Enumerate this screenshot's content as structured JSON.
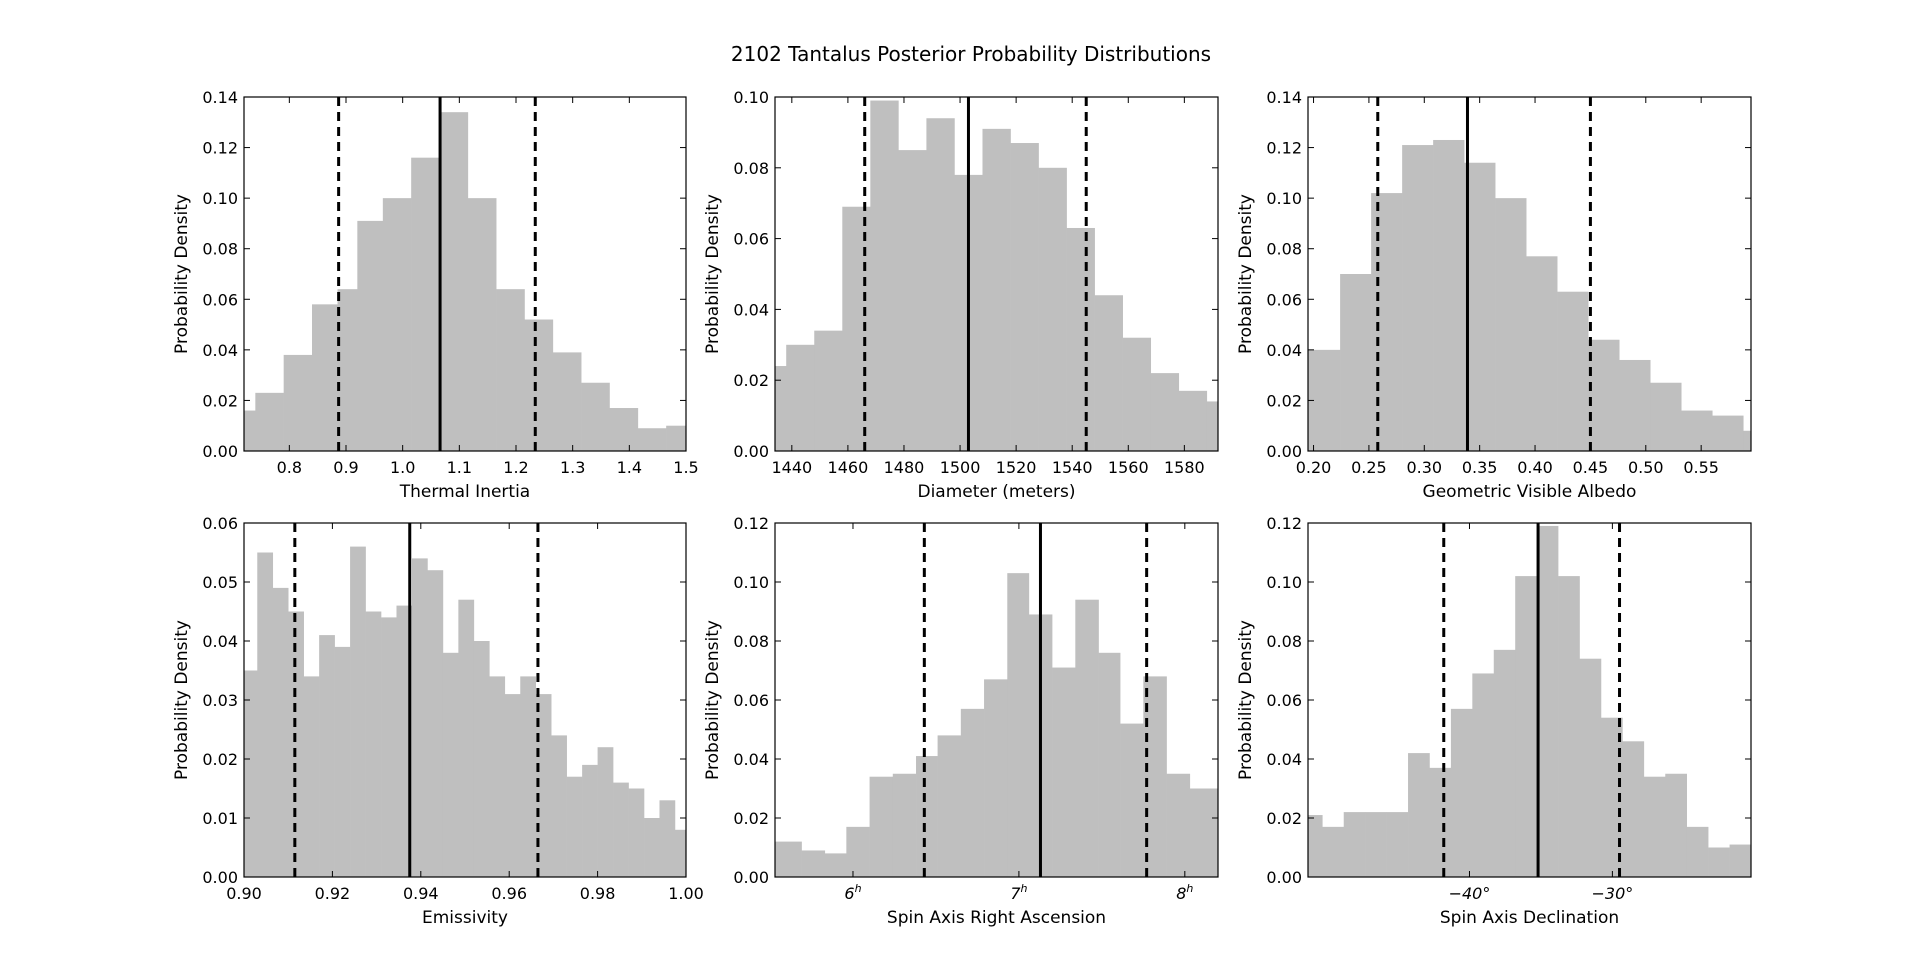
{
  "suptitle": "2102 Tantalus Posterior Probability Distributions",
  "chart_data": [
    {
      "type": "bar",
      "xlabel": "Thermal Inertia",
      "ylabel": "Probability Density",
      "xlim": [
        0.72,
        1.5
      ],
      "ylim": [
        0,
        0.14
      ],
      "xticks": [
        {
          "value": 0.8,
          "label": "0.8"
        },
        {
          "value": 0.9,
          "label": "0.9"
        },
        {
          "value": 1.0,
          "label": "1.0"
        },
        {
          "value": 1.1,
          "label": "1.1"
        },
        {
          "value": 1.2,
          "label": "1.2"
        },
        {
          "value": 1.3,
          "label": "1.3"
        },
        {
          "value": 1.4,
          "label": "1.4"
        },
        {
          "value": 1.5,
          "label": "1.5"
        }
      ],
      "yticks": [
        {
          "value": 0,
          "label": "0.00"
        },
        {
          "value": 0.02,
          "label": "0.02"
        },
        {
          "value": 0.04,
          "label": "0.04"
        },
        {
          "value": 0.06,
          "label": "0.06"
        },
        {
          "value": 0.08,
          "label": "0.08"
        },
        {
          "value": 0.1,
          "label": "0.10"
        },
        {
          "value": 0.12,
          "label": "0.12"
        },
        {
          "value": 0.14,
          "label": "0.14"
        }
      ],
      "bin_edges": [
        0.72,
        0.74,
        0.79,
        0.84,
        0.885,
        0.92,
        0.965,
        1.015,
        1.065,
        1.115,
        1.165,
        1.215,
        1.265,
        1.315,
        1.365,
        1.415,
        1.465,
        1.5
      ],
      "values": [
        0.016,
        0.023,
        0.038,
        0.058,
        0.064,
        0.091,
        0.1,
        0.116,
        0.134,
        0.1,
        0.064,
        0.052,
        0.039,
        0.027,
        0.017,
        0.009,
        0.01
      ],
      "median": 1.066,
      "interval": [
        0.887,
        1.234
      ],
      "grid": false
    },
    {
      "type": "bar",
      "xlabel": "Diameter (meters)",
      "ylabel": "Probability Density",
      "xlim": [
        1434,
        1592
      ],
      "ylim": [
        0,
        0.1
      ],
      "xticks": [
        {
          "value": 1440,
          "label": "1440"
        },
        {
          "value": 1460,
          "label": "1460"
        },
        {
          "value": 1480,
          "label": "1480"
        },
        {
          "value": 1500,
          "label": "1500"
        },
        {
          "value": 1520,
          "label": "1520"
        },
        {
          "value": 1540,
          "label": "1540"
        },
        {
          "value": 1560,
          "label": "1560"
        },
        {
          "value": 1580,
          "label": "1580"
        }
      ],
      "yticks": [
        {
          "value": 0,
          "label": "0.00"
        },
        {
          "value": 0.02,
          "label": "0.02"
        },
        {
          "value": 0.04,
          "label": "0.04"
        },
        {
          "value": 0.06,
          "label": "0.06"
        },
        {
          "value": 0.08,
          "label": "0.08"
        },
        {
          "value": 0.1,
          "label": "0.10"
        }
      ],
      "bin_edges": [
        1434,
        1438,
        1448,
        1458,
        1468,
        1478,
        1488,
        1498,
        1508,
        1518,
        1528,
        1538,
        1548,
        1558,
        1568,
        1578,
        1588,
        1592
      ],
      "values": [
        0.024,
        0.03,
        0.034,
        0.069,
        0.099,
        0.085,
        0.094,
        0.078,
        0.091,
        0.087,
        0.08,
        0.063,
        0.044,
        0.032,
        0.022,
        0.017,
        0.014
      ],
      "median": 1503,
      "interval": [
        1466,
        1545
      ],
      "grid": false
    },
    {
      "type": "bar",
      "xlabel": "Geometric Visible Albedo",
      "ylabel": "Probability Density",
      "xlim": [
        0.195,
        0.595
      ],
      "ylim": [
        0,
        0.14
      ],
      "xticks": [
        {
          "value": 0.2,
          "label": "0.20"
        },
        {
          "value": 0.25,
          "label": "0.25"
        },
        {
          "value": 0.3,
          "label": "0.30"
        },
        {
          "value": 0.35,
          "label": "0.35"
        },
        {
          "value": 0.4,
          "label": "0.40"
        },
        {
          "value": 0.45,
          "label": "0.45"
        },
        {
          "value": 0.5,
          "label": "0.50"
        },
        {
          "value": 0.55,
          "label": "0.55"
        }
      ],
      "yticks": [
        {
          "value": 0,
          "label": "0.00"
        },
        {
          "value": 0.02,
          "label": "0.02"
        },
        {
          "value": 0.04,
          "label": "0.04"
        },
        {
          "value": 0.06,
          "label": "0.06"
        },
        {
          "value": 0.08,
          "label": "0.08"
        },
        {
          "value": 0.1,
          "label": "0.10"
        },
        {
          "value": 0.12,
          "label": "0.12"
        },
        {
          "value": 0.14,
          "label": "0.14"
        }
      ],
      "bin_edges": [
        0.195,
        0.224,
        0.252,
        0.28,
        0.308,
        0.336,
        0.364,
        0.392,
        0.42,
        0.448,
        0.476,
        0.504,
        0.532,
        0.56,
        0.588,
        0.595
      ],
      "values": [
        0.04,
        0.07,
        0.102,
        0.121,
        0.123,
        0.114,
        0.1,
        0.077,
        0.063,
        0.044,
        0.036,
        0.027,
        0.016,
        0.014,
        0.008
      ],
      "median": 0.339,
      "interval": [
        0.258,
        0.45
      ],
      "grid": false
    },
    {
      "type": "bar",
      "xlabel": "Emissivity",
      "ylabel": "Probability Density",
      "xlim": [
        0.9,
        1.0
      ],
      "ylim": [
        0,
        0.06
      ],
      "xticks": [
        {
          "value": 0.9,
          "label": "0.90"
        },
        {
          "value": 0.92,
          "label": "0.92"
        },
        {
          "value": 0.94,
          "label": "0.94"
        },
        {
          "value": 0.96,
          "label": "0.96"
        },
        {
          "value": 0.98,
          "label": "0.98"
        },
        {
          "value": 1.0,
          "label": "1.00"
        }
      ],
      "yticks": [
        {
          "value": 0,
          "label": "0.00"
        },
        {
          "value": 0.01,
          "label": "0.01"
        },
        {
          "value": 0.02,
          "label": "0.02"
        },
        {
          "value": 0.03,
          "label": "0.03"
        },
        {
          "value": 0.04,
          "label": "0.04"
        },
        {
          "value": 0.05,
          "label": "0.05"
        },
        {
          "value": 0.06,
          "label": "0.06"
        }
      ],
      "bin_edges": [
        0.9,
        0.903,
        0.9065,
        0.91,
        0.9135,
        0.917,
        0.9205,
        0.924,
        0.9275,
        0.931,
        0.9345,
        0.938,
        0.9415,
        0.945,
        0.9485,
        0.952,
        0.9555,
        0.959,
        0.9625,
        0.966,
        0.9695,
        0.973,
        0.9765,
        0.98,
        0.9835,
        0.987,
        0.9905,
        0.994,
        0.9975,
        1.0
      ],
      "values": [
        0.035,
        0.055,
        0.049,
        0.045,
        0.034,
        0.041,
        0.039,
        0.056,
        0.045,
        0.044,
        0.046,
        0.054,
        0.052,
        0.038,
        0.047,
        0.04,
        0.034,
        0.031,
        0.034,
        0.031,
        0.024,
        0.017,
        0.019,
        0.022,
        0.016,
        0.015,
        0.01,
        0.013,
        0.008
      ],
      "median": 0.9375,
      "interval": [
        0.9115,
        0.9665
      ],
      "grid": false
    },
    {
      "type": "bar",
      "xlabel": "Spin Axis Right Ascension",
      "ylabel": "Probability Density",
      "xlim": [
        5.53,
        8.2
      ],
      "ylim": [
        0,
        0.12
      ],
      "xticks": [
        {
          "value": 6,
          "label": "6"
        },
        {
          "value": 7,
          "label": "7"
        },
        {
          "value": 8,
          "label": "8"
        }
      ],
      "tick_suffix": "h",
      "yticks": [
        {
          "value": 0,
          "label": "0.00"
        },
        {
          "value": 0.02,
          "label": "0.02"
        },
        {
          "value": 0.04,
          "label": "0.04"
        },
        {
          "value": 0.06,
          "label": "0.06"
        },
        {
          "value": 0.08,
          "label": "0.08"
        },
        {
          "value": 0.1,
          "label": "0.10"
        },
        {
          "value": 0.12,
          "label": "0.12"
        }
      ],
      "bin_edges": [
        5.53,
        5.69,
        5.83,
        5.96,
        6.1,
        6.24,
        6.38,
        6.51,
        6.65,
        6.79,
        6.93,
        7.06,
        7.2,
        7.34,
        7.48,
        7.61,
        7.75,
        7.89,
        8.03,
        8.2
      ],
      "values": [
        0.012,
        0.009,
        0.008,
        0.017,
        0.034,
        0.035,
        0.041,
        0.048,
        0.057,
        0.067,
        0.103,
        0.089,
        0.071,
        0.094,
        0.076,
        0.052,
        0.068,
        0.035,
        0.03
      ],
      "median": 7.13,
      "interval": [
        6.43,
        7.77
      ],
      "grid": false
    },
    {
      "type": "bar",
      "xlabel": "Spin Axis Declination",
      "ylabel": "Probability Density",
      "xlim": [
        -51.3,
        -20.3
      ],
      "ylim": [
        0,
        0.12
      ],
      "xticks": [
        {
          "value": -40,
          "label": "−40"
        },
        {
          "value": -30,
          "label": "−30"
        }
      ],
      "tick_suffix": "°",
      "yticks": [
        {
          "value": 0,
          "label": "0.00"
        },
        {
          "value": 0.02,
          "label": "0.02"
        },
        {
          "value": 0.04,
          "label": "0.04"
        },
        {
          "value": 0.06,
          "label": "0.06"
        },
        {
          "value": 0.08,
          "label": "0.08"
        },
        {
          "value": 0.1,
          "label": "0.10"
        },
        {
          "value": 0.12,
          "label": "0.12"
        }
      ],
      "bin_edges": [
        -51.3,
        -50.3,
        -48.8,
        -47.3,
        -45.8,
        -44.3,
        -42.8,
        -41.3,
        -39.8,
        -38.3,
        -36.8,
        -35.3,
        -33.8,
        -32.3,
        -30.8,
        -29.3,
        -27.8,
        -26.3,
        -24.8,
        -23.3,
        -21.8,
        -20.3
      ],
      "values": [
        0.021,
        0.017,
        0.022,
        0.022,
        0.022,
        0.042,
        0.037,
        0.057,
        0.069,
        0.077,
        0.102,
        0.119,
        0.102,
        0.074,
        0.054,
        0.046,
        0.034,
        0.035,
        0.017,
        0.01,
        0.011
      ],
      "median": -35.2,
      "interval": [
        -41.8,
        -29.5
      ],
      "grid": false
    }
  ]
}
